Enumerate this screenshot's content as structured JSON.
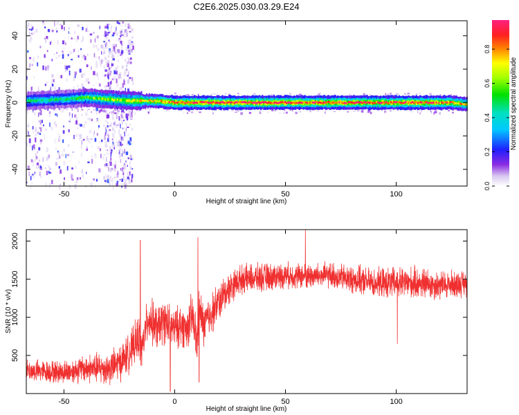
{
  "title": "C2E6.2025.030.03.29.E24",
  "chart_data": [
    {
      "type": "heatmap",
      "xlabel": "Height of straight line (km)",
      "ylabel": "Frequency (Hz)",
      "xlim": [
        -67,
        132
      ],
      "ylim": [
        -50,
        49
      ],
      "xticks": [
        -50,
        0,
        50,
        100
      ],
      "yticks": [
        -40,
        -20,
        0,
        20,
        40
      ],
      "colorbar": {
        "label": "Normalized spectral amplitude",
        "range": [
          0,
          0.97
        ],
        "ticks": [
          0.0,
          0.2,
          0.4,
          0.6,
          0.8
        ],
        "tick_labels": [
          "0.0",
          "0.2",
          "0.4",
          "0.6",
          "0.8"
        ],
        "colormap": "rainbow (white-purple-blue-cyan-green-yellow-red-magenta)"
      },
      "ridge": {
        "description": "dominant spectral peak near 0 Hz across all heights",
        "x": [
          -67,
          -50,
          -40,
          -30,
          -20,
          -10,
          0,
          20,
          50,
          80,
          110,
          125,
          132
        ],
        "freq_hz": [
          1,
          2,
          3,
          2,
          1,
          1,
          0,
          0,
          0,
          0,
          0,
          0,
          -1
        ],
        "amplitude": [
          0.45,
          0.45,
          0.55,
          0.6,
          0.65,
          0.75,
          0.85,
          0.9,
          0.9,
          0.88,
          0.88,
          0.8,
          0.7
        ]
      },
      "noise_band": {
        "x_range": [
          -67,
          -20
        ],
        "note": "scattered low-amplitude (~0.05-0.2) energy over full frequency range"
      },
      "grid": false
    },
    {
      "type": "line",
      "xlabel": "Height of straight line (km)",
      "ylabel": "SNR (10 * v/v)",
      "xlim": [
        -67,
        132
      ],
      "ylim": [
        0,
        2150
      ],
      "xticks": [
        -50,
        0,
        50,
        100
      ],
      "yticks": [
        500,
        1000,
        1500,
        2000
      ],
      "series": [
        {
          "color": "#f03030",
          "envelope_x": [
            -67,
            -50,
            -40,
            -30,
            -25,
            -20,
            -16,
            -15,
            -12,
            -8,
            -5,
            0,
            3,
            5,
            8,
            10,
            11,
            13,
            20,
            25,
            30,
            40,
            50,
            60,
            70,
            80,
            90,
            100,
            110,
            120,
            132
          ],
          "envelope_mean": [
            300,
            280,
            330,
            330,
            400,
            550,
            750,
            550,
            1000,
            850,
            950,
            850,
            900,
            850,
            1000,
            650,
            1100,
            900,
            1200,
            1400,
            1500,
            1520,
            1550,
            1540,
            1550,
            1500,
            1450,
            1450,
            1450,
            1420,
            1450
          ],
          "envelope_half": [
            170,
            180,
            220,
            260,
            280,
            300,
            350,
            300,
            350,
            350,
            350,
            300,
            350,
            300,
            400,
            400,
            350,
            350,
            300,
            250,
            220,
            220,
            200,
            200,
            200,
            220,
            220,
            250,
            250,
            230,
            200
          ],
          "spikes": [
            {
              "x": -15.5,
              "y": 2010
            },
            {
              "x": 10.5,
              "y": 2050
            },
            {
              "x": 59,
              "y": 2150
            },
            {
              "x": 100.5,
              "y": 650
            },
            {
              "x": 11,
              "y": 150
            },
            {
              "x": -2,
              "y": 30
            }
          ]
        }
      ],
      "grid": false
    }
  ]
}
